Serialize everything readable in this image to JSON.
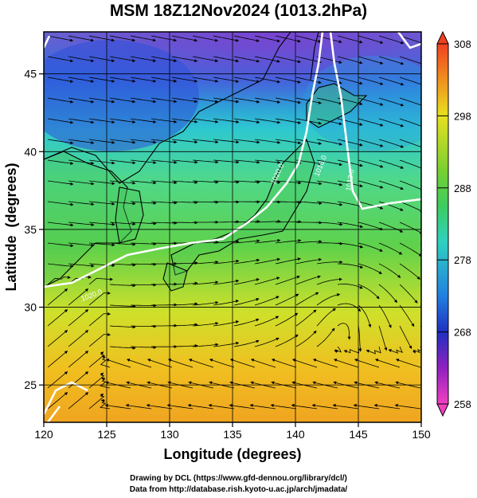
{
  "title": "MSM 18Z12Nov2024 (1013.2hPa)",
  "xaxis": {
    "label": "Longitude (degrees)",
    "ticks": [
      120,
      125,
      130,
      135,
      140,
      145,
      150
    ]
  },
  "yaxis": {
    "label": "Latitude  (degrees)",
    "ticks": [
      25,
      30,
      35,
      40,
      45
    ]
  },
  "colorbar": {
    "ticks": [
      308,
      298,
      288,
      278,
      268,
      258
    ],
    "min": 258,
    "max": 308
  },
  "isobar_labels": [
    "1020.0",
    "1016.0",
    "1020.0",
    "1012.0"
  ],
  "credits": {
    "line1": "Drawing by DCL (https://www.gfd-dennou.org/library/dcl/)",
    "line2": "Data from http://database.rish.kyoto-u.ac.jp/arch/jmadata/"
  },
  "colors": {
    "isobar": "#ffffff",
    "coast": "#000000",
    "streamline": "#000000"
  }
}
